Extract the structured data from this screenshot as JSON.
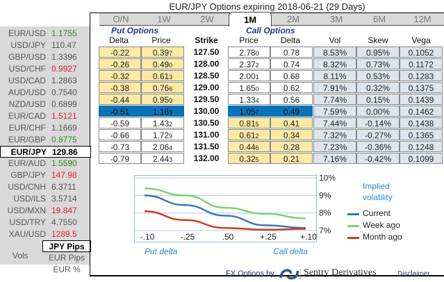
{
  "title": "EUR/JPY Options expiring 2018-06-21 (29 Days)",
  "sidebar": {
    "pairs": [
      {
        "name": "EUR/USD",
        "value": "1.1755",
        "color": "green"
      },
      {
        "name": "USD/JPY",
        "value": "110.47",
        "color": "neutral"
      },
      {
        "name": "GBP/USD",
        "value": "1.3396",
        "color": "neutral"
      },
      {
        "name": "USD/CHF",
        "value": "0.9927",
        "color": "red"
      },
      {
        "name": "USD/CAD",
        "value": "1.2863",
        "color": "neutral"
      },
      {
        "name": "AUD/USD",
        "value": "0.7540",
        "color": "neutral"
      },
      {
        "name": "NZD/USD",
        "value": "0.6899",
        "color": "neutral"
      },
      {
        "name": "EUR/CAD",
        "value": "1.5121",
        "color": "red"
      },
      {
        "name": "EUR/CHF",
        "value": "1.1669",
        "color": "neutral"
      },
      {
        "name": "EUR/GBP",
        "value": "0.8775",
        "color": "green"
      },
      {
        "name": "EUR/JPY",
        "value": "129.86",
        "color": "selected"
      },
      {
        "name": "EUR/AUD",
        "value": "1.5590",
        "color": "green"
      },
      {
        "name": "GBP/JPY",
        "value": "147.98",
        "color": "red"
      },
      {
        "name": "USD/CNH",
        "value": "6.3711",
        "color": "neutral"
      },
      {
        "name": "USD/ILS",
        "value": "3.5714",
        "color": "neutral"
      },
      {
        "name": "USD/MXN",
        "value": "19.847",
        "color": "red"
      },
      {
        "name": "USD/TRY",
        "value": "4.7550",
        "color": "neutral"
      },
      {
        "name": "XAU/USD",
        "value": "1289.5",
        "color": "red"
      }
    ],
    "vols_label": "Vols",
    "units": [
      {
        "label": "JPY Pips",
        "selected": true
      },
      {
        "label": "EUR Pips",
        "selected": false
      },
      {
        "label": "EUR %",
        "selected": false
      }
    ]
  },
  "tabs": [
    {
      "label": "O/N",
      "active": false
    },
    {
      "label": "1W",
      "active": false
    },
    {
      "label": "2W",
      "active": false
    },
    {
      "label": "1M",
      "active": true
    },
    {
      "label": "2M",
      "active": false
    },
    {
      "label": "3M",
      "active": false
    },
    {
      "label": "6M",
      "active": false
    },
    {
      "label": "12M",
      "active": false
    }
  ],
  "sections": {
    "put": "Put Options",
    "call": "Call Options"
  },
  "columns": {
    "put_delta": "Delta",
    "put_price": "Price",
    "strike": "Strike",
    "call_price": "Price",
    "call_delta": "Delta",
    "vol": "Vol",
    "skew": "Skew",
    "vega": "Vega"
  },
  "rows": [
    {
      "put_delta": "-0.22",
      "put_price": "0.39",
      "put_price_sub": "7",
      "strike": "127.50",
      "call_price": "2.78",
      "call_price_sub": "0",
      "call_delta": "0.78",
      "vol": "8.53%",
      "skew": "0.95%",
      "vega": "0.1052",
      "state": "itm_call"
    },
    {
      "put_delta": "-0.26",
      "put_price": "0.49",
      "put_price_sub": "0",
      "strike": "128.00",
      "call_price": "2.37",
      "call_price_sub": "2",
      "call_delta": "0.74",
      "vol": "8.32%",
      "skew": "0.73%",
      "vega": "0.1172",
      "state": "itm_call"
    },
    {
      "put_delta": "-0.32",
      "put_price": "0.61",
      "put_price_sub": "3",
      "strike": "128.50",
      "call_price": "2.00",
      "call_price_sub": "1",
      "call_delta": "0.68",
      "vol": "8.11%",
      "skew": "0.53%",
      "vega": "0.1283",
      "state": "itm_call"
    },
    {
      "put_delta": "-0.38",
      "put_price": "0.76",
      "put_price_sub": "6",
      "strike": "129.00",
      "call_price": "1.65",
      "call_price_sub": "0",
      "call_delta": "0.62",
      "vol": "7.91%",
      "skew": "0.32%",
      "vega": "0.1375",
      "state": "itm_call"
    },
    {
      "put_delta": "-0.44",
      "put_price": "0.95",
      "put_price_sub": "9",
      "strike": "129.50",
      "call_price": "1.33",
      "call_price_sub": "4",
      "call_delta": "0.56",
      "vol": "7.74%",
      "skew": "0.15%",
      "vega": "0.1439",
      "state": "itm_call"
    },
    {
      "put_delta": "-0.51",
      "put_price": "1.16",
      "put_price_sub": "3",
      "strike": "130.00",
      "call_price": "1.05",
      "call_price_sub": "7",
      "call_delta": "0.49",
      "vol": "7.59%",
      "skew": "0.00%",
      "vega": "0.1462",
      "state": "atm"
    },
    {
      "put_delta": "-0.59",
      "put_price": "1.43",
      "put_price_sub": "2",
      "strike": "130.50",
      "call_price": "0.81",
      "call_price_sub": "5",
      "call_delta": "0.41",
      "vol": "7.44%",
      "skew": "-0.14%",
      "vega": "0.1438",
      "state": "itm_put"
    },
    {
      "put_delta": "-0.66",
      "put_price": "1.72",
      "put_price_sub": "9",
      "strike": "131.00",
      "call_price": "0.61",
      "call_price_sub": "2",
      "call_delta": "0.34",
      "vol": "7.32%",
      "skew": "-0.27%",
      "vega": "0.1365",
      "state": "itm_put"
    },
    {
      "put_delta": "-0.73",
      "put_price": "2.06",
      "put_price_sub": "4",
      "strike": "131.50",
      "call_price": "0.44",
      "call_price_sub": "6",
      "call_delta": "0.28",
      "vol": "7.23%",
      "skew": "-0.36%",
      "vega": "0.1248",
      "state": "itm_put"
    },
    {
      "put_delta": "-0.79",
      "put_price": "2.44",
      "put_price_sub": "3",
      "strike": "132.00",
      "call_price": "0.32",
      "call_price_sub": "5",
      "call_delta": "0.21",
      "vol": "7.16%",
      "skew": "-0.42%",
      "vega": "0.1099",
      "state": "itm_put"
    }
  ],
  "colors": {
    "otm": "#faeaa6",
    "itm": "#ffffff",
    "atm": "#0a73b8",
    "stats": "#dde5ef",
    "current": "#3a78b5",
    "week_ago": "#7fcf74",
    "month_ago": "#cc3b1f"
  },
  "chart_data": {
    "type": "line",
    "title": "Implied volatility",
    "categories": [
      "-.10",
      "-.25",
      ".50",
      "+.25",
      "+.10"
    ],
    "xlabel_left": "Put delta",
    "xlabel_right": "Call delta",
    "yticks": [
      "7%",
      "8%",
      "9%",
      "10%"
    ],
    "ylim": [
      7,
      10
    ],
    "legend_position": "right",
    "series": [
      {
        "name": "Current",
        "values": [
          9.0,
          8.45,
          7.85,
          7.3,
          7.15
        ]
      },
      {
        "name": "Week ago",
        "values": [
          9.4,
          9.0,
          8.3,
          7.95,
          7.7
        ]
      },
      {
        "name": "Month ago",
        "values": [
          8.1,
          7.6,
          7.15,
          7.05,
          7.1
        ]
      }
    ]
  },
  "footer": {
    "prefix": "FX Options by",
    "brand": "Sentry Derivatives",
    "disclaimer": "Disclaimer"
  }
}
